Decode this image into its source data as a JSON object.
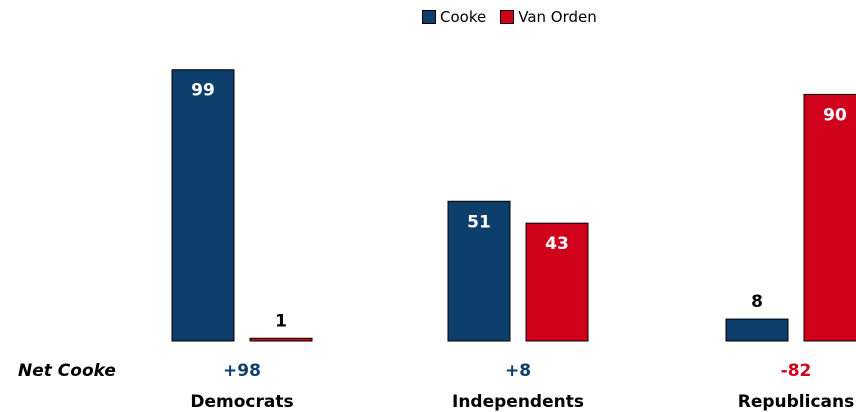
{
  "chart_data": {
    "type": "bar",
    "categories": [
      "Democrats",
      "Independents",
      "Republicans"
    ],
    "series": [
      {
        "name": "Cooke",
        "values": [
          99,
          51,
          8
        ],
        "color": "#0e3e6b"
      },
      {
        "name": "Van Orden",
        "values": [
          1,
          43,
          90
        ],
        "color": "#d0021b"
      }
    ],
    "net_label": "Net Cooke",
    "net_values": [
      "+98",
      "+8",
      "-82"
    ],
    "net_colors": [
      "#0e3e6b",
      "#0e3e6b",
      "#d0021b"
    ],
    "legend_position": "top",
    "ylim": [
      0,
      100
    ],
    "grid": false
  }
}
